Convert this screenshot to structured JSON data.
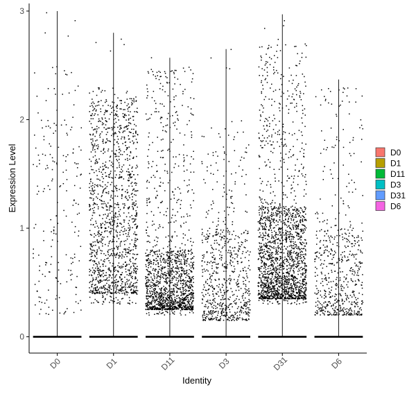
{
  "chart_data": {
    "type": "scatter",
    "subtype": "violin-jitter",
    "xlabel": "Identity",
    "ylabel": "Expression Level",
    "ylim": [
      -0.15,
      3.07
    ],
    "yticks": [
      0,
      1,
      2,
      3
    ],
    "categories": [
      "D0",
      "D1",
      "D11",
      "D3",
      "D31",
      "D6"
    ],
    "legend": {
      "position": "right",
      "entries": [
        {
          "label": "D0",
          "color": "#F8766D"
        },
        {
          "label": "D1",
          "color": "#B79F00"
        },
        {
          "label": "D11",
          "color": "#00BA38"
        },
        {
          "label": "D3",
          "color": "#00BFC4"
        },
        {
          "label": "D31",
          "color": "#619CFF"
        },
        {
          "label": "D6",
          "color": "#F564E3"
        }
      ]
    },
    "point_color": "#000000",
    "series": [
      {
        "category": "D0",
        "violin_max": 3.0,
        "nonzero_points": 200,
        "min_nonzero": 0.15,
        "main_range": [
          0.2,
          2.5
        ],
        "dense_band": null
      },
      {
        "category": "D1",
        "violin_max": 2.8,
        "nonzero_points": 1400,
        "min_nonzero": 0.25,
        "main_range": [
          0.3,
          2.3
        ],
        "dense_band": [
          0.4,
          2.2
        ]
      },
      {
        "category": "D11",
        "violin_max": 2.57,
        "nonzero_points": 1500,
        "min_nonzero": 0.2,
        "main_range": [
          0.2,
          2.5
        ],
        "dense_band": [
          0.25,
          0.8
        ]
      },
      {
        "category": "D3",
        "violin_max": 2.65,
        "nonzero_points": 700,
        "min_nonzero": 0.13,
        "main_range": [
          0.15,
          2.0
        ],
        "dense_band": [
          0.15,
          1.0
        ]
      },
      {
        "category": "D31",
        "violin_max": 2.97,
        "nonzero_points": 2000,
        "min_nonzero": 0.3,
        "main_range": [
          0.3,
          2.7
        ],
        "dense_band": [
          0.35,
          1.2
        ]
      },
      {
        "category": "D6",
        "violin_max": 2.37,
        "nonzero_points": 600,
        "min_nonzero": 0.15,
        "main_range": [
          0.2,
          2.3
        ],
        "dense_band": [
          0.2,
          1.0
        ]
      }
    ]
  }
}
